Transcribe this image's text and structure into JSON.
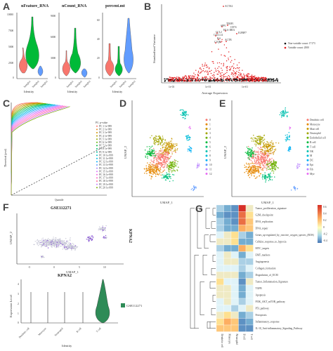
{
  "panels": {
    "A": {
      "letter": "A",
      "violins": [
        {
          "title": "nFeature_RNA",
          "ticks": [
            "10000",
            "7500",
            "5000",
            "2500",
            "0"
          ],
          "fill": "#f8766d"
        },
        {
          "title": "nCount_RNA",
          "ticks": [
            "9000",
            "6000",
            "3000",
            "0"
          ],
          "fill": "#00ba38"
        },
        {
          "title": "percent.mt",
          "ticks": [
            "60",
            "40",
            "20",
            "0"
          ],
          "fill": "#619cff"
        }
      ],
      "groups": [
        "Sample1",
        "Sample2",
        "Sample3"
      ],
      "group_colors": [
        "#f8766d",
        "#00ba38",
        "#619cff"
      ],
      "xlabel": "Identity"
    },
    "B": {
      "letter": "B",
      "ylabel": "Standardized Variance",
      "xlabel": "Average Expression",
      "xticks": [
        "1e-03",
        "1e-01",
        "1e+01"
      ],
      "labels": [
        "ACTA2",
        "TIMP1",
        "CD74",
        "SPP1",
        "HLA-DRA",
        "CCL2",
        "IGFBP7",
        "CXCL14",
        "IL6",
        "C1QB",
        "ACTB"
      ],
      "legend": [
        {
          "text": "Non-variable count: 17173",
          "color": "#111111"
        },
        {
          "text": "Variable count: 2000",
          "color": "#e41a1c"
        }
      ]
    },
    "C": {
      "letter": "C",
      "xlabel": "Quantile",
      "ylabel": "Theoretical (pval)",
      "legend_title": "PC: p-value",
      "legend": [
        "PC 1 1e-999",
        "PC 2 1e-999",
        "PC 3 1e-999",
        "PC 4 1e-999",
        "PC 5 1e-999",
        "PC 6 1e-999",
        "PC 7 1e-999",
        "PC 8 1e-999",
        "PC 9 1e-999",
        "PC 10 1e-999",
        "PC 11 1e-999",
        "PC 12 1e-999",
        "PC 13 1e-999",
        "PC 14 1e-999",
        "PC 15 1e-999",
        "PC 16 1e-999",
        "PC 17 1e-999",
        "PC 18 1e-999",
        "PC 19 1e-999",
        "PC 20 1e-999"
      ]
    },
    "D": {
      "letter": "D",
      "xlabel": "UMAP_1",
      "ylabel": "UMAP_2",
      "clusters": [
        "0",
        "1",
        "2",
        "3",
        "4",
        "5",
        "6",
        "7",
        "8",
        "9",
        "10",
        "11",
        "12"
      ],
      "colors": [
        "#f8766d",
        "#e58700",
        "#c99800",
        "#a3a500",
        "#6bb100",
        "#00ba38",
        "#00bf7d",
        "#00c0af",
        "#00bcd8",
        "#00b0f6",
        "#619cff",
        "#b983ff",
        "#e76bf3"
      ]
    },
    "E": {
      "letter": "E",
      "xlabel": "UMAP_1",
      "ylabel": "UMAP_2",
      "cell_types": [
        "Dendritic cell",
        "Monocyte",
        "Mast cell",
        "Neutrophil",
        "Endothelial cell",
        "B cell",
        "T cell",
        "NK",
        "M",
        "DC",
        "Epi",
        "Fib",
        "Mye"
      ]
    },
    "F": {
      "letter": "F",
      "umap_title": "GSE112271",
      "umap_side": "KPNA2",
      "umap_xlabel": "UMAP_1",
      "umap_ylabel": "UMAP_2",
      "umap_xticks": [
        "-5",
        "0",
        "5",
        "10"
      ],
      "violin_title": "KPNA2",
      "violin_ylabel": "Expression Level",
      "violin_xlabel": "Identity",
      "violin_yticks": [
        "4",
        "3",
        "2",
        "1",
        "0"
      ],
      "violin_groups": [
        "Dendritic cell",
        "Monocyte",
        "Neutrophil",
        "B cell",
        "T cell"
      ],
      "legend": "GSE112271",
      "color": "#2e8b57"
    },
    "G": {
      "letter": "G",
      "pathways": [
        "Tumor_proliferation_signature",
        "G2M_checkpoint",
        "DNA_replication",
        "DNA_repair",
        "Genes_up-regulated_by_reactive_oxygen_species_(ROS)",
        "Cellular_response_to_hypoxia",
        "MYC_targets",
        "EMT_markers",
        "Angiogenesis",
        "Collagen_formation",
        "Degradation_of_ECM",
        "Tumor_Inflammation_Signature",
        "TGFB",
        "Apoptosis",
        "PI3K_AKT_mTOR_pathway",
        "P53_pathway",
        "Ferroptosis",
        "Inflammatory_response",
        "IL-10_Anti-inflammatory_Signaling_Pathway"
      ],
      "columns": [
        "Dendritic cell",
        "Monocyte",
        "Neutrophil",
        "B cell",
        "T cell"
      ],
      "scale_ticks": [
        "0.6",
        "0.4",
        "0.2",
        "0",
        "-0.2",
        "-0.4"
      ]
    }
  }
}
